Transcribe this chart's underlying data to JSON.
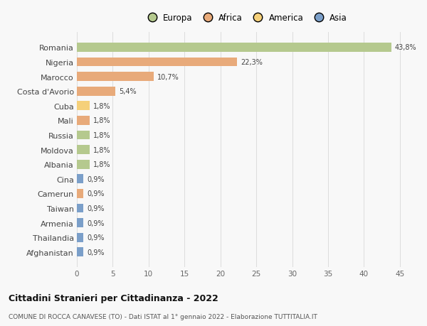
{
  "countries": [
    "Romania",
    "Nigeria",
    "Marocco",
    "Costa d'Avorio",
    "Cuba",
    "Mali",
    "Russia",
    "Moldova",
    "Albania",
    "Cina",
    "Camerun",
    "Taiwan",
    "Armenia",
    "Thailandia",
    "Afghanistan"
  ],
  "values": [
    43.8,
    22.3,
    10.7,
    5.4,
    1.8,
    1.8,
    1.8,
    1.8,
    1.8,
    0.9,
    0.9,
    0.9,
    0.9,
    0.9,
    0.9
  ],
  "labels": [
    "43,8%",
    "22,3%",
    "10,7%",
    "5,4%",
    "1,8%",
    "1,8%",
    "1,8%",
    "1,8%",
    "1,8%",
    "0,9%",
    "0,9%",
    "0,9%",
    "0,9%",
    "0,9%",
    "0,9%"
  ],
  "colors": [
    "#b5c98e",
    "#e8aa7a",
    "#e8aa7a",
    "#e8aa7a",
    "#f5d07a",
    "#e8aa7a",
    "#b5c98e",
    "#b5c98e",
    "#b5c98e",
    "#7b9fc9",
    "#e8aa7a",
    "#7b9fc9",
    "#7b9fc9",
    "#7b9fc9",
    "#7b9fc9"
  ],
  "legend_labels": [
    "Europa",
    "Africa",
    "America",
    "Asia"
  ],
  "legend_colors": [
    "#b5c98e",
    "#e8aa7a",
    "#f5d07a",
    "#7b9fc9"
  ],
  "title": "Cittadini Stranieri per Cittadinanza - 2022",
  "subtitle": "COMUNE DI ROCCA CANAVESE (TO) - Dati ISTAT al 1° gennaio 2022 - Elaborazione TUTTITALIA.IT",
  "xlim": [
    0,
    47
  ],
  "xticks": [
    0,
    5,
    10,
    15,
    20,
    25,
    30,
    35,
    40,
    45
  ],
  "background_color": "#f8f8f8",
  "grid_color": "#dddddd"
}
